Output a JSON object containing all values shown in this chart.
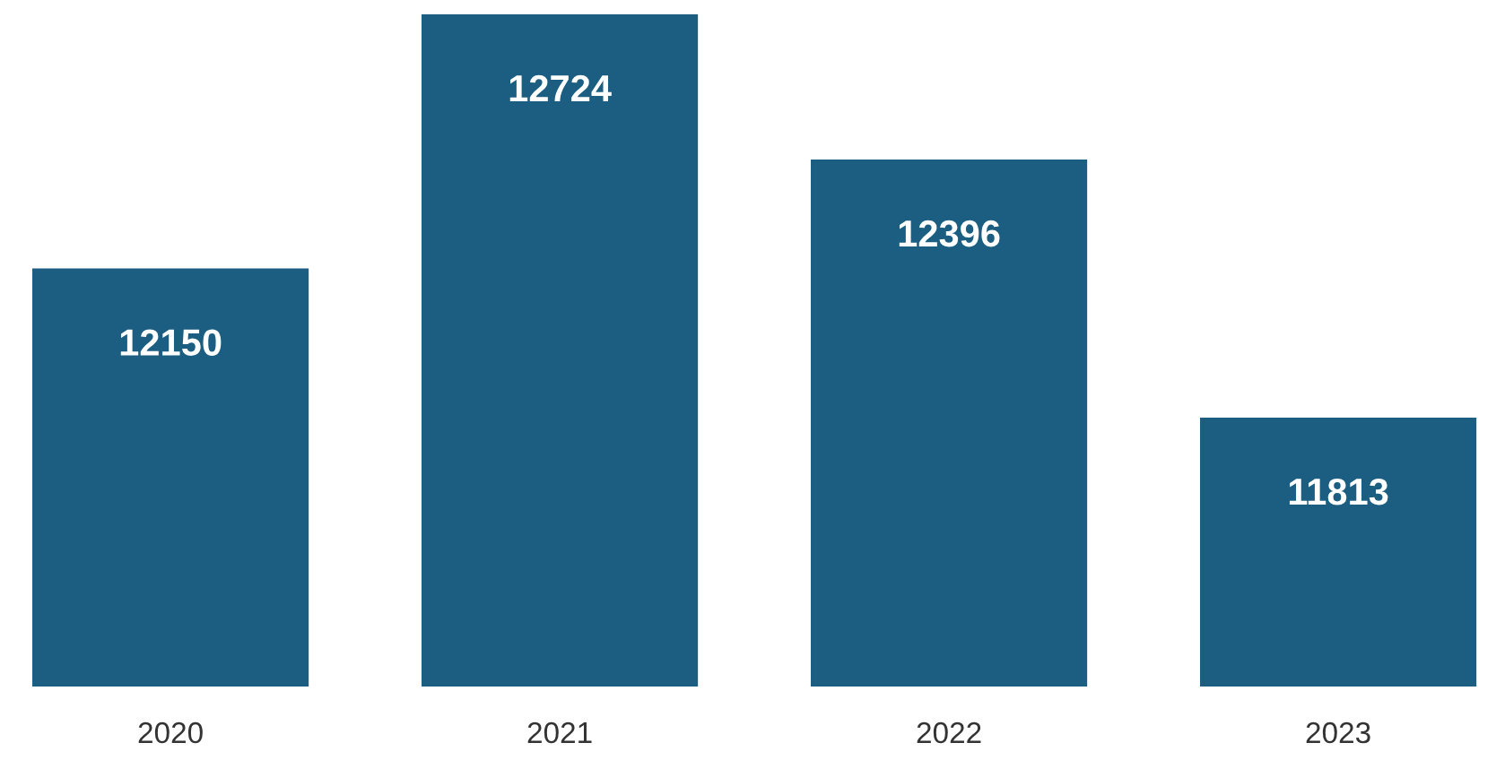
{
  "chart_data": {
    "type": "bar",
    "categories": [
      "2020",
      "2021",
      "2022",
      "2023"
    ],
    "values": [
      12150,
      12724,
      12396,
      11813
    ],
    "color": "#1b5e82",
    "ylim": [
      11206,
      12724
    ],
    "data_labels": true,
    "tick_labels": "x",
    "grid": false,
    "legend": false
  }
}
